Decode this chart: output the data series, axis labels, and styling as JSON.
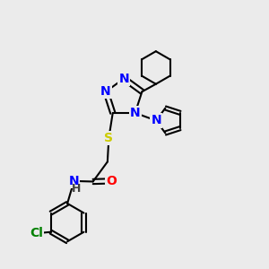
{
  "bg_color": "#ebebeb",
  "atom_colors": {
    "N": "#0000ff",
    "O": "#ff0000",
    "S": "#cccc00",
    "Cl": "#008000",
    "C": "#000000",
    "H": "#404040"
  },
  "bond_color": "#000000",
  "bond_width": 1.5,
  "font_size": 10
}
